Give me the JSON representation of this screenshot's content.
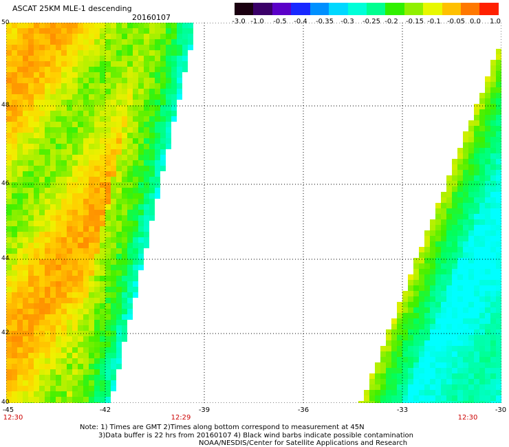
{
  "header": {
    "title": "ASCAT 25KM MLE-1 descending",
    "date": "20160107"
  },
  "colorbar": {
    "labels": [
      "-3.0",
      "-1.0",
      "-0.5",
      "-0.4",
      "-0.35",
      "-0.3",
      "-0.25",
      "-0.2",
      "-0.15",
      "-0.1",
      "-0.05",
      "0.0",
      "1.0"
    ],
    "colors": [
      "#1a0010",
      "#3a0068",
      "#5a00c8",
      "#1828ff",
      "#0090ff",
      "#00d8ff",
      "#00ffd8",
      "#00ff90",
      "#30f000",
      "#90f000",
      "#e8f800",
      "#ffc000",
      "#ff7800",
      "#ff2000"
    ]
  },
  "map": {
    "lat_labels": [
      "50",
      "48",
      "46",
      "44",
      "42",
      "40"
    ],
    "lon_labels": [
      "-45",
      "-42",
      "-39",
      "-36",
      "-33",
      "-30"
    ],
    "time_labels": [
      "12:30",
      "12:29",
      "12:30"
    ]
  },
  "notes": {
    "line1": "Note: 1) Times are GMT 2)Times along bottom correspond to measurement at 45N",
    "line2": "3)Data buffer is 22 hrs from 20160107 4) Black wind barbs indicate possible contamination",
    "line3": "NOAA/NESDIS/Center for Satellite Applications and Research"
  }
}
